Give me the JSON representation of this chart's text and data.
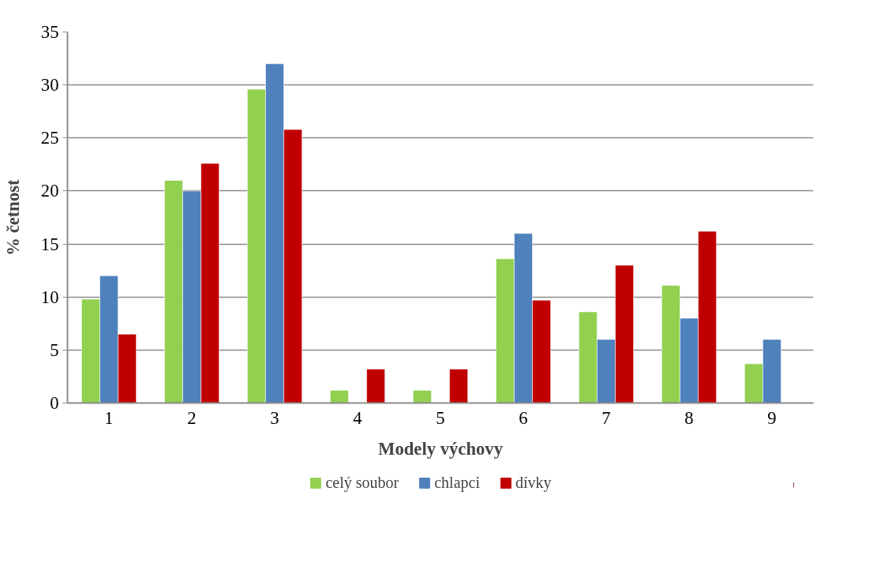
{
  "chart_data": {
    "type": "bar",
    "xlabel": "Modely výchovy",
    "ylabel": "% četnost",
    "categories": [
      "1",
      "2",
      "3",
      "4",
      "5",
      "6",
      "7",
      "8",
      "9"
    ],
    "series": [
      {
        "name": "celý soubor",
        "color": "#92d050",
        "values": [
          9.8,
          21,
          29.6,
          1.2,
          1.2,
          13.6,
          8.6,
          11.1,
          3.7
        ]
      },
      {
        "name": "chlapci",
        "color": "#4f81bd",
        "values": [
          12,
          20,
          32,
          null,
          null,
          16,
          6,
          8,
          6
        ]
      },
      {
        "name": "dívky",
        "color": "#c00000",
        "values": [
          6.5,
          22.6,
          25.8,
          3.2,
          3.2,
          9.7,
          13,
          16.2,
          null
        ]
      }
    ],
    "ylim": [
      0,
      35
    ],
    "yticks": [
      0,
      5,
      10,
      15,
      20,
      25,
      30,
      35
    ],
    "grid": "y",
    "legend": "bottom"
  }
}
